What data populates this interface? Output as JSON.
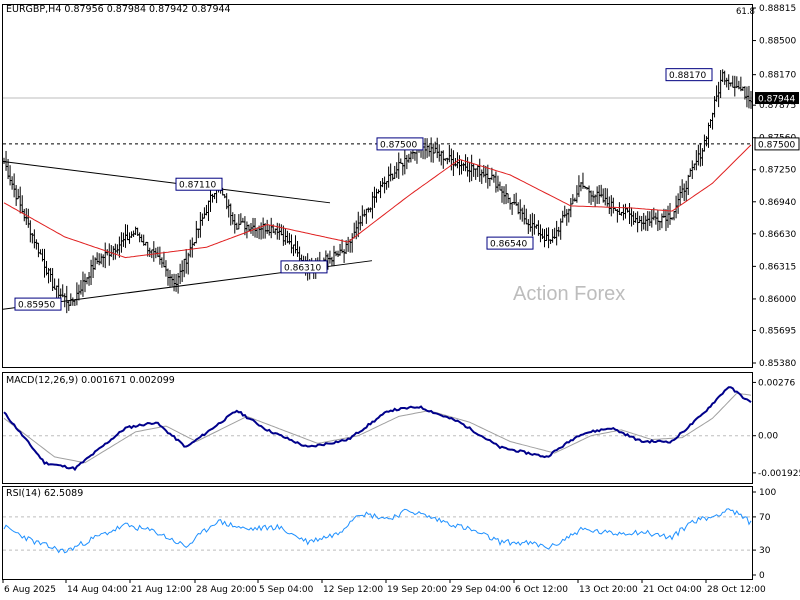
{
  "header": {
    "symbol": "EURGBP,H4",
    "ohlc": "0.87956 0.87984 0.87942 0.87944",
    "macd_label": "MACD(12,26,9) 0.001671 0.002099",
    "rsi_label": "RSI(14) 62.5089",
    "fib_label": "61.8",
    "watermark": "Action Forex"
  },
  "colors": {
    "bars": "#000000",
    "ma": "#e02020",
    "macd": "#00008b",
    "signal": "#a0a0a0",
    "rsi": "#1e90ff",
    "grid": "#bdbdbd",
    "trendline": "#000000",
    "label_border": "#000080"
  },
  "chart_data": [
    {
      "type": "ohlc",
      "title": "EURGBP,H4",
      "x_labels": [
        "6 Aug 2025",
        "14 Aug 04:00",
        "21 Aug 12:00",
        "28 Aug 20:00",
        "5 Sep 04:00",
        "12 Sep 12:00",
        "19 Sep 20:00",
        "29 Sep 04:00",
        "6 Oct 12:00",
        "13 Oct 20:00",
        "21 Oct 04:00",
        "28 Oct 12:00"
      ],
      "y_ticks": [
        "0.88815",
        "0.88500",
        "0.88170",
        "0.87875",
        "0.87560",
        "0.87250",
        "0.86940",
        "0.86630",
        "0.86315",
        "0.86000",
        "0.85695",
        "0.85380"
      ],
      "ylim": [
        0.8538,
        0.88815
      ],
      "current_price": "0.87944",
      "level_line": "0.87500",
      "annotations": [
        "0.85950",
        "0.87110",
        "0.86310",
        "0.87500",
        "0.86540",
        "0.88170"
      ],
      "key_points": [
        {
          "x": 0,
          "y": 0.8733
        },
        {
          "x": 8,
          "y": 0.869
        },
        {
          "x": 25,
          "y": 0.861
        },
        {
          "x": 33,
          "y": 0.8595
        },
        {
          "x": 45,
          "y": 0.8635
        },
        {
          "x": 65,
          "y": 0.8665
        },
        {
          "x": 85,
          "y": 0.8615
        },
        {
          "x": 105,
          "y": 0.8711
        },
        {
          "x": 115,
          "y": 0.8672
        },
        {
          "x": 135,
          "y": 0.8668
        },
        {
          "x": 150,
          "y": 0.8631
        },
        {
          "x": 168,
          "y": 0.8645
        },
        {
          "x": 185,
          "y": 0.8705
        },
        {
          "x": 205,
          "y": 0.875
        },
        {
          "x": 220,
          "y": 0.8735
        },
        {
          "x": 240,
          "y": 0.872
        },
        {
          "x": 255,
          "y": 0.8682
        },
        {
          "x": 270,
          "y": 0.8654
        },
        {
          "x": 285,
          "y": 0.871
        },
        {
          "x": 300,
          "y": 0.869
        },
        {
          "x": 315,
          "y": 0.8675
        },
        {
          "x": 330,
          "y": 0.8682
        },
        {
          "x": 345,
          "y": 0.8745
        },
        {
          "x": 355,
          "y": 0.8817
        },
        {
          "x": 369,
          "y": 0.8794
        }
      ],
      "ma_key_points": [
        {
          "x": 0,
          "y": 0.8693
        },
        {
          "x": 30,
          "y": 0.866
        },
        {
          "x": 60,
          "y": 0.864
        },
        {
          "x": 100,
          "y": 0.865
        },
        {
          "x": 130,
          "y": 0.8672
        },
        {
          "x": 170,
          "y": 0.8655
        },
        {
          "x": 200,
          "y": 0.87
        },
        {
          "x": 225,
          "y": 0.8735
        },
        {
          "x": 250,
          "y": 0.872
        },
        {
          "x": 280,
          "y": 0.869
        },
        {
          "x": 310,
          "y": 0.8688
        },
        {
          "x": 330,
          "y": 0.8685
        },
        {
          "x": 350,
          "y": 0.8712
        },
        {
          "x": 369,
          "y": 0.8749
        }
      ]
    },
    {
      "type": "line",
      "title": "MACD(12,26,9) 0.001671 0.002099",
      "y_ticks": [
        "0.00276",
        "0.00",
        "-0.001925"
      ],
      "ylim": [
        -0.00245,
        0.0033
      ],
      "series": [
        {
          "name": "MACD",
          "key_points": [
            {
              "x": 0,
              "y": 0.0012
            },
            {
              "x": 20,
              "y": -0.0014
            },
            {
              "x": 35,
              "y": -0.0017
            },
            {
              "x": 60,
              "y": 0.0004
            },
            {
              "x": 75,
              "y": 0.0007
            },
            {
              "x": 90,
              "y": -0.0006
            },
            {
              "x": 115,
              "y": 0.0013
            },
            {
              "x": 130,
              "y": 0.0003
            },
            {
              "x": 150,
              "y": -0.0006
            },
            {
              "x": 170,
              "y": -0.0002
            },
            {
              "x": 190,
              "y": 0.0013
            },
            {
              "x": 205,
              "y": 0.0015
            },
            {
              "x": 225,
              "y": 0.0007
            },
            {
              "x": 245,
              "y": -0.0006
            },
            {
              "x": 268,
              "y": -0.0011
            },
            {
              "x": 285,
              "y": 0.0001
            },
            {
              "x": 300,
              "y": 0.0004
            },
            {
              "x": 315,
              "y": -0.0003
            },
            {
              "x": 330,
              "y": -0.0003
            },
            {
              "x": 345,
              "y": 0.0011
            },
            {
              "x": 358,
              "y": 0.00255
            },
            {
              "x": 369,
              "y": 0.0017
            }
          ]
        },
        {
          "name": "Signal",
          "key_points": [
            {
              "x": 0,
              "y": 0.0009
            },
            {
              "x": 25,
              "y": -0.0011
            },
            {
              "x": 40,
              "y": -0.0014
            },
            {
              "x": 65,
              "y": 0.0002
            },
            {
              "x": 80,
              "y": 0.0005
            },
            {
              "x": 95,
              "y": -0.0003
            },
            {
              "x": 120,
              "y": 0.001
            },
            {
              "x": 135,
              "y": 0.0004
            },
            {
              "x": 155,
              "y": -0.0004
            },
            {
              "x": 175,
              "y": 0.0
            },
            {
              "x": 195,
              "y": 0.001
            },
            {
              "x": 210,
              "y": 0.0013
            },
            {
              "x": 230,
              "y": 0.0007
            },
            {
              "x": 250,
              "y": -0.0003
            },
            {
              "x": 272,
              "y": -0.0009
            },
            {
              "x": 290,
              "y": 0.0
            },
            {
              "x": 305,
              "y": 0.0003
            },
            {
              "x": 320,
              "y": -0.0002
            },
            {
              "x": 335,
              "y": -0.0001
            },
            {
              "x": 350,
              "y": 0.0009
            },
            {
              "x": 362,
              "y": 0.0022
            },
            {
              "x": 369,
              "y": 0.0021
            }
          ]
        }
      ]
    },
    {
      "type": "line",
      "title": "RSI(14) 62.5089",
      "y_ticks": [
        "100",
        "70",
        "30",
        "0"
      ],
      "ylim": [
        0,
        100
      ],
      "levels": [
        70,
        30
      ],
      "series": [
        {
          "name": "RSI",
          "key_points": [
            {
              "x": 0,
              "y": 58
            },
            {
              "x": 15,
              "y": 40
            },
            {
              "x": 30,
              "y": 28
            },
            {
              "x": 45,
              "y": 45
            },
            {
              "x": 60,
              "y": 60
            },
            {
              "x": 75,
              "y": 52
            },
            {
              "x": 90,
              "y": 34
            },
            {
              "x": 105,
              "y": 65
            },
            {
              "x": 120,
              "y": 55
            },
            {
              "x": 135,
              "y": 58
            },
            {
              "x": 150,
              "y": 40
            },
            {
              "x": 165,
              "y": 50
            },
            {
              "x": 175,
              "y": 75
            },
            {
              "x": 190,
              "y": 68
            },
            {
              "x": 200,
              "y": 78
            },
            {
              "x": 215,
              "y": 66
            },
            {
              "x": 230,
              "y": 55
            },
            {
              "x": 245,
              "y": 40
            },
            {
              "x": 260,
              "y": 38
            },
            {
              "x": 270,
              "y": 33
            },
            {
              "x": 285,
              "y": 55
            },
            {
              "x": 300,
              "y": 50
            },
            {
              "x": 315,
              "y": 52
            },
            {
              "x": 330,
              "y": 45
            },
            {
              "x": 340,
              "y": 65
            },
            {
              "x": 350,
              "y": 70
            },
            {
              "x": 358,
              "y": 80
            },
            {
              "x": 369,
              "y": 63
            }
          ]
        }
      ]
    }
  ]
}
